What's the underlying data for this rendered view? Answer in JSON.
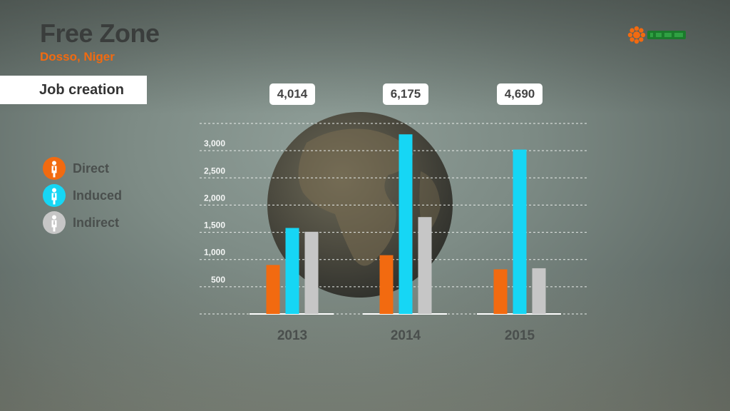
{
  "header": {
    "title": "Free Zone",
    "subtitle": "Dosso, Niger"
  },
  "section_tab": "Job creation",
  "colors": {
    "direct": "#f26a10",
    "induced": "#16d6f5",
    "indirect": "#c6c6c6",
    "accent": "#f26a10"
  },
  "legend": [
    {
      "name": "Direct",
      "icon": "person-icon",
      "color": "#f26a10"
    },
    {
      "name": "Induced",
      "icon": "person-icon",
      "color": "#16d6f5"
    },
    {
      "name": "Indirect",
      "icon": "person-icon",
      "color": "#c6c6c6"
    }
  ],
  "chart_data": {
    "type": "bar",
    "title": "",
    "xlabel": "",
    "ylabel": "",
    "categories": [
      "2013",
      "2014",
      "2015"
    ],
    "totals": [
      "4,014",
      "6,175",
      "4,690"
    ],
    "series": [
      {
        "name": "Direct",
        "color": "#f26a10",
        "values": [
          900,
          1080,
          820
        ]
      },
      {
        "name": "Induced",
        "color": "#16d6f5",
        "values": [
          1580,
          3300,
          3020
        ]
      },
      {
        "name": "Indirect",
        "color": "#c6c6c6",
        "values": [
          1510,
          1780,
          840
        ]
      }
    ],
    "yticks": [
      {
        "value": 500,
        "label": "500"
      },
      {
        "value": 1000,
        "label": "1,000"
      },
      {
        "value": 1500,
        "label": "1,500"
      },
      {
        "value": 2000,
        "label": "2,000"
      },
      {
        "value": 2500,
        "label": "2,500"
      },
      {
        "value": 3000,
        "label": "3,000"
      }
    ],
    "ylim": [
      0,
      3500
    ],
    "grid": true,
    "legend_position": "left"
  }
}
